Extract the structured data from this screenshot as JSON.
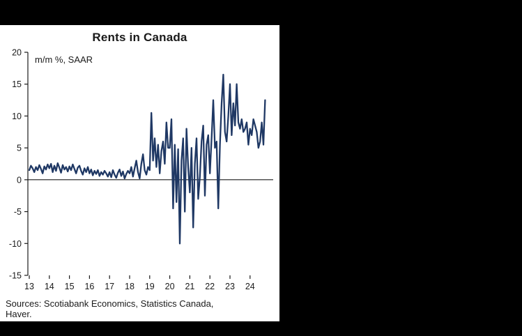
{
  "chart": {
    "title": "Rents in Canada",
    "axis_note": "m/m %, SAAR",
    "source_line1": "Sources: Scotiabank Economics, Statistics Canada,",
    "source_line2": "Haver."
  },
  "chart_data": {
    "type": "line",
    "title": "Rents in Canada",
    "subtitle": "m/m %, SAAR",
    "xlabel": "",
    "ylabel": "m/m %, SAAR",
    "ylim": [
      -15,
      20
    ],
    "yticks": [
      20,
      15,
      10,
      5,
      0,
      -5,
      -10,
      -15
    ],
    "xticks": [
      "13",
      "14",
      "15",
      "16",
      "17",
      "18",
      "19",
      "20",
      "21",
      "22",
      "23",
      "24"
    ],
    "x_start": "2013-01",
    "frequency": "monthly",
    "grid": false,
    "legend": "none",
    "line_color": "#1f3864",
    "zero_line": true,
    "values": [
      1.5,
      2.2,
      1.8,
      1.2,
      2.0,
      1.5,
      2.3,
      1.7,
      1.0,
      2.1,
      1.6,
      2.4,
      1.8,
      2.5,
      1.2,
      2.2,
      1.4,
      2.6,
      1.9,
      1.1,
      2.3,
      1.6,
      2.0,
      1.3,
      2.1,
      1.5,
      2.4,
      1.7,
      1.0,
      1.9,
      2.2,
      1.4,
      0.8,
      1.8,
      1.2,
      2.0,
      1.0,
      1.6,
      0.7,
      1.4,
      0.9,
      1.5,
      0.6,
      1.2,
      0.8,
      1.4,
      1.0,
      0.5,
      1.2,
      0.4,
      1.5,
      0.8,
      0.3,
      1.1,
      1.6,
      0.6,
      1.3,
      0.2,
      0.9,
      1.4,
      1.0,
      2.0,
      0.5,
      1.8,
      3.0,
      1.2,
      0.2,
      2.5,
      4.0,
      1.5,
      0.8,
      2.0,
      1.5,
      10.5,
      3.0,
      6.5,
      2.0,
      5.5,
      1.0,
      4.5,
      6.0,
      2.5,
      9.0,
      5.0,
      5.0,
      9.5,
      -4.5,
      5.5,
      -3.5,
      4.8,
      -10.0,
      3.0,
      6.5,
      -5.0,
      8.0,
      2.0,
      -2.0,
      5.0,
      -7.5,
      2.5,
      6.5,
      -3.0,
      0.5,
      6.0,
      8.5,
      -2.5,
      5.5,
      7.0,
      1.0,
      6.5,
      12.5,
      5.0,
      6.0,
      -4.5,
      5.5,
      12.0,
      16.5,
      7.5,
      6.0,
      10.0,
      15.0,
      7.0,
      12.0,
      8.5,
      15.0,
      9.0,
      8.0,
      9.5,
      7.5,
      8.0,
      9.0,
      5.5,
      8.0,
      7.0,
      9.5,
      8.5,
      7.5,
      5.0,
      6.0,
      9.0,
      5.5,
      12.5
    ]
  }
}
